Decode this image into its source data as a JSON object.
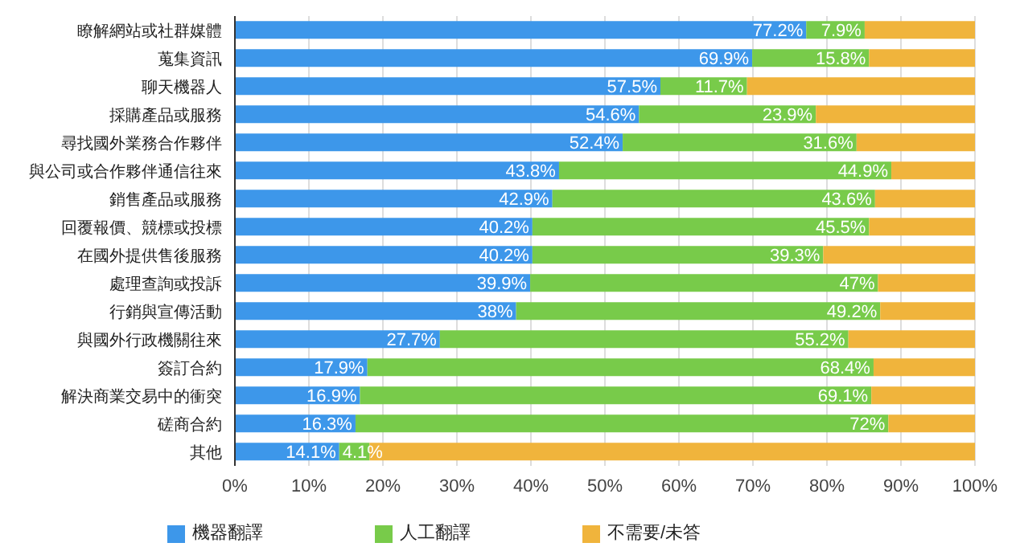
{
  "chart_data": {
    "type": "bar",
    "orientation": "horizontal",
    "stacked": true,
    "categories": [
      "瞭解網站或社群媒體",
      "蒐集資訊",
      "聊天機器人",
      "採購產品或服務",
      "尋找國外業務合作夥伴",
      "與公司或合作夥伴通信往來",
      "銷售產品或服務",
      "回覆報價、競標或投標",
      "在國外提供售後服務",
      "處理查詢或投訴",
      "行銷與宣傳活動",
      "與國外行政機關往來",
      "簽訂合約",
      "解決商業交易中的衝突",
      "磋商合約",
      "其他"
    ],
    "series": [
      {
        "name": "機器翻譯",
        "color": "#3d97ea",
        "values": [
          77.2,
          69.9,
          57.5,
          54.6,
          52.4,
          43.8,
          42.9,
          40.2,
          40.2,
          39.9,
          38,
          27.7,
          17.9,
          16.9,
          16.3,
          14.1
        ],
        "value_labels": [
          "77.2%",
          "69.9%",
          "57.5%",
          "54.6%",
          "52.4%",
          "43.8%",
          "42.9%",
          "40.2%",
          "40.2%",
          "39.9%",
          "38%",
          "27.7%",
          "17.9%",
          "16.9%",
          "16.3%",
          "14.1%"
        ]
      },
      {
        "name": "人工翻譯",
        "color": "#78cb4a",
        "values": [
          7.9,
          15.8,
          11.7,
          23.9,
          31.6,
          44.9,
          43.6,
          45.5,
          39.3,
          47,
          49.2,
          55.2,
          68.4,
          69.1,
          72,
          4.1
        ],
        "value_labels": [
          "7.9%",
          "15.8%",
          "11.7%",
          "23.9%",
          "31.6%",
          "44.9%",
          "43.6%",
          "45.5%",
          "39.3%",
          "47%",
          "49.2%",
          "55.2%",
          "68.4%",
          "69.1%",
          "72%",
          "4.1%"
        ]
      },
      {
        "name": "不需要/未答",
        "color": "#f0b43c",
        "values": [
          14.9,
          14.3,
          30.8,
          21.5,
          16.0,
          11.3,
          13.5,
          14.3,
          20.5,
          13.1,
          12.8,
          17.1,
          13.7,
          14.0,
          11.7,
          81.8
        ]
      }
    ],
    "xlim": [
      0,
      100
    ],
    "xticks": [
      {
        "value": 0,
        "label": "0%"
      },
      {
        "value": 10,
        "label": "10%"
      },
      {
        "value": 20,
        "label": "20%"
      },
      {
        "value": 30,
        "label": "30%"
      },
      {
        "value": 40,
        "label": "40%"
      },
      {
        "value": 50,
        "label": "50%"
      },
      {
        "value": 60,
        "label": "60%"
      },
      {
        "value": 70,
        "label": "70%"
      },
      {
        "value": 80,
        "label": "80%"
      },
      {
        "value": 90,
        "label": "90%"
      },
      {
        "value": 100,
        "label": "100%"
      }
    ],
    "grid": "x",
    "legend": "bottom"
  }
}
